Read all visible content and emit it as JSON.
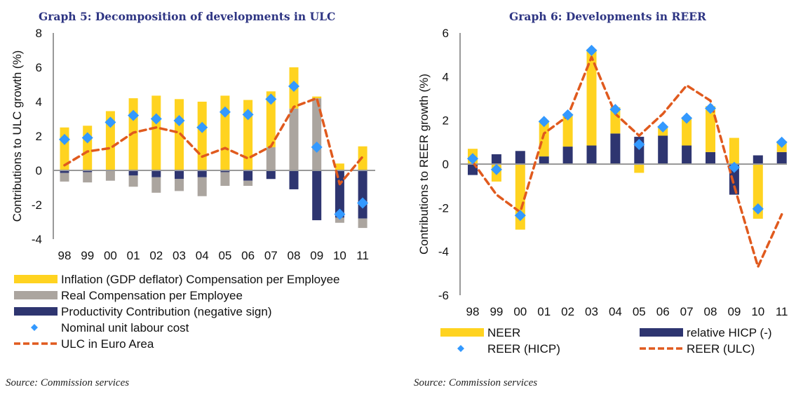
{
  "chart_data": [
    {
      "type": "bar",
      "title": "Graph 5: Decomposition of developments in ULC",
      "xlabel": "",
      "ylabel": "Contributions to ULC growth (%)",
      "ylim": [
        -4,
        8
      ],
      "yticks": [
        8,
        6,
        4,
        2,
        0,
        -2,
        -4
      ],
      "categories": [
        "98",
        "99",
        "00",
        "01",
        "02",
        "03",
        "04",
        "05",
        "06",
        "07",
        "08",
        "09",
        "10",
        "11"
      ],
      "stacked": true,
      "series": [
        {
          "name": "Inflation (GDP deflator) Compensation per Employee",
          "kind": "bar",
          "color": "#ffd320",
          "values": [
            2.5,
            2.6,
            3.45,
            4.2,
            4.35,
            4.15,
            4.0,
            4.35,
            4.1,
            3.25,
            2.4,
            0.1,
            0.4,
            1.4
          ]
        },
        {
          "name": "Real Compensation per Employee",
          "kind": "bar",
          "color": "#aba59f",
          "values": [
            -0.5,
            -0.6,
            -0.6,
            -0.65,
            -0.9,
            -0.7,
            -1.1,
            -0.8,
            -0.3,
            1.35,
            3.6,
            4.2,
            -0.3,
            -0.55
          ]
        },
        {
          "name": "Productivity Contribution (negative sign)",
          "kind": "bar",
          "color": "#2e3570",
          "values": [
            -0.15,
            -0.1,
            0.0,
            -0.3,
            -0.4,
            -0.5,
            -0.4,
            -0.1,
            -0.6,
            -0.5,
            -1.1,
            -2.9,
            -2.75,
            -2.8
          ]
        },
        {
          "name": "Nominal unit labour cost",
          "kind": "marker",
          "color": "#3399ff",
          "values": [
            1.8,
            1.9,
            2.8,
            3.2,
            3.0,
            2.9,
            2.5,
            3.4,
            3.25,
            4.15,
            4.9,
            1.35,
            -2.55,
            -1.9
          ]
        },
        {
          "name": "ULC in Euro Area",
          "kind": "line",
          "color": "#e05a1e",
          "values": [
            0.3,
            1.1,
            1.3,
            2.2,
            2.5,
            2.2,
            0.8,
            1.3,
            0.7,
            1.4,
            3.7,
            4.2,
            -0.8,
            0.8
          ]
        }
      ],
      "legend": "bottom",
      "grid": false
    },
    {
      "type": "bar",
      "title": "Graph 6: Developments in REER",
      "xlabel": "",
      "ylabel": "Contributions to REER growth (%)",
      "ylim": [
        -6,
        6
      ],
      "yticks": [
        6,
        4,
        2,
        0,
        -2,
        -4,
        -6
      ],
      "categories": [
        "98",
        "99",
        "00",
        "01",
        "02",
        "03",
        "04",
        "05",
        "06",
        "07",
        "08",
        "09",
        "10",
        "11"
      ],
      "stacked": true,
      "series": [
        {
          "name": "NEER",
          "kind": "bar",
          "color": "#ffd320",
          "values": [
            0.7,
            -0.8,
            -3.0,
            1.6,
            1.5,
            4.4,
            1.2,
            -0.4,
            0.4,
            1.3,
            2.1,
            1.2,
            -2.5,
            0.5
          ]
        },
        {
          "name": "relative HICP (-)",
          "kind": "bar",
          "color": "#2e3570",
          "values": [
            -0.5,
            0.45,
            0.6,
            0.35,
            0.8,
            0.85,
            1.4,
            1.25,
            1.3,
            0.85,
            0.55,
            -1.4,
            0.4,
            0.55
          ]
        },
        {
          "name": "REER (HICP)",
          "kind": "marker",
          "color": "#3399ff",
          "values": [
            0.25,
            -0.25,
            -2.35,
            1.95,
            2.25,
            5.2,
            2.5,
            0.9,
            1.7,
            2.1,
            2.55,
            -0.15,
            -2.05,
            1.0
          ]
        },
        {
          "name": "REER (ULC)",
          "kind": "line",
          "color": "#e05a1e",
          "values": [
            0.1,
            -1.4,
            -2.2,
            1.4,
            2.2,
            4.9,
            2.3,
            1.3,
            2.3,
            3.6,
            2.9,
            -1.0,
            -4.7,
            -2.3
          ]
        }
      ],
      "legend": "bottom",
      "grid": false
    }
  ],
  "captions": {
    "left_source": "Source: Commission services",
    "right_source": "Source: Commission services"
  }
}
